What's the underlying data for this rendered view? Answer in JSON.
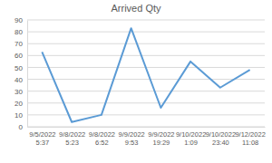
{
  "chart_data": {
    "type": "line",
    "title": "Arrived Qty",
    "categories": [
      "9/5/2022 5:37",
      "9/8/2022 5:23",
      "9/8/2022 6:52",
      "9/9/2022 9:53",
      "9/9/2022 19:29",
      "9/10/2022 1:09",
      "9/10/2022 23:40",
      "9/12/2022 11:08"
    ],
    "values": [
      63,
      4,
      10,
      83,
      16,
      55,
      33,
      48
    ],
    "color": "#5b9bd5",
    "ylim": [
      0,
      90
    ],
    "yticks": [
      0,
      10,
      20,
      30,
      40,
      50,
      60,
      70,
      80,
      90
    ],
    "grid": true
  }
}
